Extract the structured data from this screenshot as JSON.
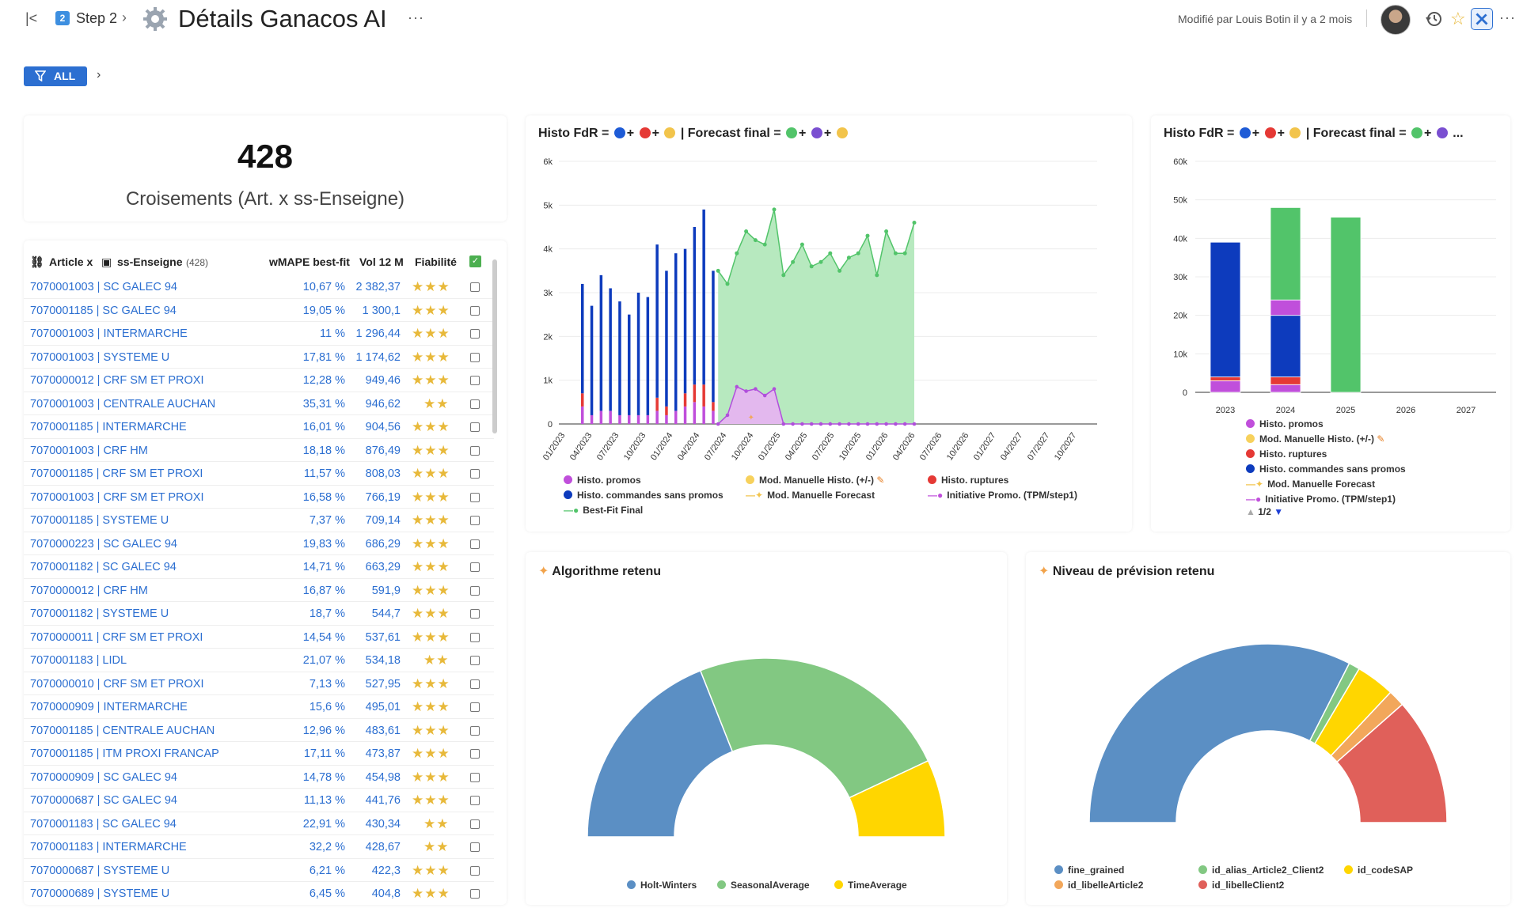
{
  "header": {
    "collapse_icon": "collapse-left-icon",
    "step_number": "2",
    "step_label": "Step 2",
    "title": "Détails Ganacos AI",
    "modified": "Modifié par Louis Botin il y a 2 mois"
  },
  "filter": {
    "label": "ALL"
  },
  "kpi": {
    "value": "428",
    "label": "Croisements (Art. x ss-Enseigne)"
  },
  "table": {
    "header": {
      "article": "Article x",
      "enseigne": "ss-Enseigne",
      "count": "(428)",
      "wmape": "wMAPE best-fit",
      "vol": "Vol 12 M",
      "fiab": "Fiabilité"
    },
    "rows": [
      {
        "article": "7070001003 | SC GALEC 94",
        "wmape": "10,67 %",
        "vol": "2 382,37",
        "stars": "★★★"
      },
      {
        "article": "7070001185 | SC GALEC 94",
        "wmape": "19,05 %",
        "vol": "1 300,1",
        "stars": "★★★"
      },
      {
        "article": "7070001003 | INTERMARCHE",
        "wmape": "11 %",
        "vol": "1 296,44",
        "stars": "★★★"
      },
      {
        "article": "7070001003 | SYSTEME U",
        "wmape": "17,81 %",
        "vol": "1 174,62",
        "stars": "★★★"
      },
      {
        "article": "7070000012 | CRF SM ET PROXI",
        "wmape": "12,28 %",
        "vol": "949,46",
        "stars": "★★★"
      },
      {
        "article": "7070001003 | CENTRALE AUCHAN",
        "wmape": "35,31 %",
        "vol": "946,62",
        "stars": "★★"
      },
      {
        "article": "7070001185 | INTERMARCHE",
        "wmape": "16,01 %",
        "vol": "904,56",
        "stars": "★★★"
      },
      {
        "article": "7070001003 | CRF HM",
        "wmape": "18,18 %",
        "vol": "876,49",
        "stars": "★★★"
      },
      {
        "article": "7070001185 | CRF SM ET PROXI",
        "wmape": "11,57 %",
        "vol": "808,03",
        "stars": "★★★"
      },
      {
        "article": "7070001003 | CRF SM ET PROXI",
        "wmape": "16,58 %",
        "vol": "766,19",
        "stars": "★★★"
      },
      {
        "article": "7070001185 | SYSTEME U",
        "wmape": "7,37 %",
        "vol": "709,14",
        "stars": "★★★"
      },
      {
        "article": "7070000223 | SC GALEC 94",
        "wmape": "19,83 %",
        "vol": "686,29",
        "stars": "★★★"
      },
      {
        "article": "7070001182 | SC GALEC 94",
        "wmape": "14,71 %",
        "vol": "663,29",
        "stars": "★★★"
      },
      {
        "article": "7070000012 | CRF HM",
        "wmape": "16,87 %",
        "vol": "591,9",
        "stars": "★★★"
      },
      {
        "article": "7070001182 | SYSTEME U",
        "wmape": "18,7 %",
        "vol": "544,7",
        "stars": "★★★"
      },
      {
        "article": "7070000011 | CRF SM ET PROXI",
        "wmape": "14,54 %",
        "vol": "537,61",
        "stars": "★★★"
      },
      {
        "article": "7070001183 | LIDL",
        "wmape": "21,07 %",
        "vol": "534,18",
        "stars": "★★"
      },
      {
        "article": "7070000010 | CRF SM ET PROXI",
        "wmape": "7,13 %",
        "vol": "527,95",
        "stars": "★★★"
      },
      {
        "article": "7070000909 | INTERMARCHE",
        "wmape": "15,6 %",
        "vol": "495,01",
        "stars": "★★★"
      },
      {
        "article": "7070001185 | CENTRALE AUCHAN",
        "wmape": "12,96 %",
        "vol": "483,61",
        "stars": "★★★"
      },
      {
        "article": "7070001185 | ITM PROXI FRANCAP",
        "wmape": "17,11 %",
        "vol": "473,87",
        "stars": "★★★"
      },
      {
        "article": "7070000909 | SC GALEC 94",
        "wmape": "14,78 %",
        "vol": "454,98",
        "stars": "★★★"
      },
      {
        "article": "7070000687 | SC GALEC 94",
        "wmape": "11,13 %",
        "vol": "441,76",
        "stars": "★★★"
      },
      {
        "article": "7070001183 | SC GALEC 94",
        "wmape": "22,91 %",
        "vol": "430,34",
        "stars": "★★"
      },
      {
        "article": "7070001183 | INTERMARCHE",
        "wmape": "32,2 %",
        "vol": "428,67",
        "stars": "★★"
      },
      {
        "article": "7070000687 | SYSTEME U",
        "wmape": "6,21 %",
        "vol": "422,3",
        "stars": "★★★"
      },
      {
        "article": "7070000689 | SYSTEME U",
        "wmape": "6,45 %",
        "vol": "404,8",
        "stars": "★★★"
      }
    ]
  },
  "charts": {
    "histo_title_a": "Histo FdR =",
    "histo_title_b": "| Forecast final =",
    "algo_title": "Algorithme retenu",
    "niveau_title": "Niveau de prévision retenu",
    "line_legend": [
      "Histo. promos",
      "Mod. Manuelle Histo. (+/-)",
      "Histo. ruptures",
      "Histo. commandes sans promos",
      "Mod. Manuelle Forecast",
      "Initiative Promo. (TPM/step1)",
      "Best-Fit Final"
    ],
    "bar_legend": [
      "Histo. promos",
      "Mod. Manuelle Histo. (+/-)",
      "Histo. ruptures",
      "Histo. commandes sans promos",
      "Mod. Manuelle Forecast",
      "Initiative Promo. (TPM/step1)"
    ],
    "bar_legend_page": "1/2",
    "algo_legend": [
      "Holt-Winters",
      "SeasonalAverage",
      "TimeAverage"
    ],
    "niveau_legend": [
      "fine_grained",
      "id_alias_Article2_Client2",
      "id_codeSAP",
      "id_libelleArticle2",
      "id_libelleClient2"
    ]
  },
  "colors": {
    "accent": "#2c6fd1",
    "promos": "#c04fdb",
    "ruptures": "#e53935",
    "commandes": "#0d3bbd",
    "manuelle": "#f7d15c",
    "bestfit": "#52c46a",
    "holt": "#5b8fc4",
    "seasonal": "#82c882",
    "timeavg": "#ffd600",
    "sap": "#f2a75b",
    "client": "#e0605a"
  },
  "chart_data": [
    {
      "type": "line",
      "title": "Histo FdR = ● + ● + ● | Forecast final = ● + ● + ●",
      "y_ticks": [
        "0",
        "1k",
        "2k",
        "3k",
        "4k",
        "5k",
        "6k"
      ],
      "x_ticks": [
        "01/2023",
        "04/2023",
        "07/2023",
        "10/2023",
        "01/2024",
        "04/2024",
        "07/2024",
        "10/2024",
        "01/2025",
        "04/2025",
        "07/2025",
        "10/2025",
        "01/2026",
        "04/2026",
        "07/2026",
        "10/2026",
        "01/2027",
        "04/2027",
        "07/2027",
        "10/2027"
      ],
      "ylim": [
        0,
        6000
      ],
      "series": [
        {
          "name": "Histo. commandes sans promos",
          "values": [
            3200,
            2700,
            3400,
            3100,
            2800,
            2500,
            3000,
            2900,
            4100,
            3500,
            3900,
            4000,
            4500,
            4900,
            3500
          ]
        },
        {
          "name": "Histo. promos",
          "values": [
            400,
            200,
            300,
            300,
            200,
            200,
            200,
            200,
            300,
            200,
            300,
            400,
            500,
            400,
            300
          ]
        },
        {
          "name": "Histo. ruptures",
          "values": [
            300,
            0,
            0,
            0,
            0,
            0,
            0,
            0,
            300,
            200,
            0,
            300,
            400,
            500,
            200
          ]
        },
        {
          "name": "Best-Fit Final",
          "values": [
            3500,
            3200,
            3900,
            4400,
            4200,
            4100,
            4900,
            3400,
            3700,
            4100,
            3600,
            3700,
            3900,
            3500,
            3800,
            3900,
            4300,
            3400,
            4400,
            3900,
            3900,
            4600
          ]
        },
        {
          "name": "Initiative Promo. (TPM/step1)",
          "values": [
            0,
            200,
            850,
            750,
            800,
            650,
            800,
            0,
            0,
            0,
            0,
            0,
            0,
            0,
            0,
            0,
            0,
            0,
            0,
            0,
            0,
            0
          ]
        }
      ]
    },
    {
      "type": "bar",
      "title": "Histo FdR = ● + ● + ● | Forecast final = ● + ● ...",
      "categories": [
        "2023",
        "2024",
        "2025",
        "2026",
        "2027"
      ],
      "y_ticks": [
        "0",
        "10k",
        "20k",
        "30k",
        "40k",
        "50k",
        "60k"
      ],
      "ylim": [
        0,
        60000
      ],
      "series": [
        {
          "name": "Histo. promos",
          "values": [
            3000,
            2000,
            0,
            0,
            0
          ]
        },
        {
          "name": "Histo. ruptures",
          "values": [
            1000,
            2000,
            0,
            0,
            0
          ]
        },
        {
          "name": "Histo. commandes sans promos",
          "values": [
            35000,
            16000,
            0,
            0,
            0
          ]
        },
        {
          "name": "Initiative Promo. (TPM/step1)",
          "values": [
            0,
            4000,
            0,
            0,
            0
          ]
        },
        {
          "name": "Best-Fit Final",
          "values": [
            0,
            24000,
            45500,
            0,
            0
          ]
        }
      ]
    },
    {
      "type": "pie",
      "title": "Algorithme retenu",
      "categories": [
        "Holt-Winters",
        "SeasonalAverage",
        "TimeAverage"
      ],
      "values": [
        38,
        48,
        14
      ]
    },
    {
      "type": "pie",
      "title": "Niveau de prévision retenu",
      "categories": [
        "fine_grained",
        "id_alias_Article2_Client2",
        "id_codeSAP",
        "id_libelleArticle2",
        "id_libelleClient2"
      ],
      "values": [
        65,
        2,
        7,
        3,
        23
      ]
    }
  ]
}
